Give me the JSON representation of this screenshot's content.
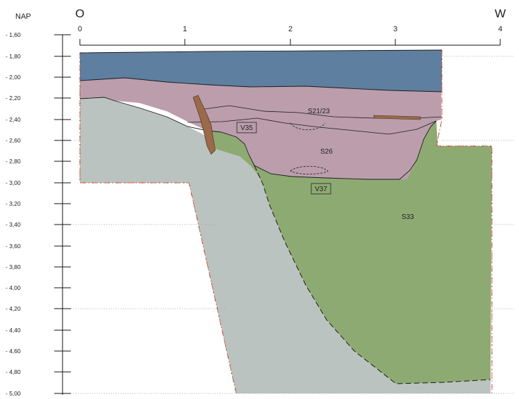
{
  "vertical_axis": {
    "title": "NAP",
    "labels": [
      "- 1,60",
      "- 1,80",
      "- 2,00",
      "- 2,20",
      "- 2,40",
      "- 2,60",
      "- 2,80",
      "- 3,00",
      "- 3,20",
      "- 3,40",
      "- 3,60",
      "- 3,80",
      "- 4,00",
      "- 4,20",
      "- 4,40",
      "- 4,60",
      "- 4,80",
      "- 5,00"
    ]
  },
  "horizontal_axis": {
    "east_label": "O",
    "west_label": "W",
    "labels": [
      "0",
      "1",
      "2",
      "3",
      "4"
    ]
  },
  "features": {
    "s21_23": "S21/23",
    "v35": "V35",
    "s26": "S26",
    "v37": "V37",
    "s33": "S33"
  },
  "colors": {
    "blue_layer": "#5e7f9f",
    "pink_layer": "#bb9dac",
    "grey_layer": "#bac3bf",
    "green_fill": "#8daa72",
    "brown_object": "#9b6a48",
    "excavation_edge": "#e25a3e"
  }
}
